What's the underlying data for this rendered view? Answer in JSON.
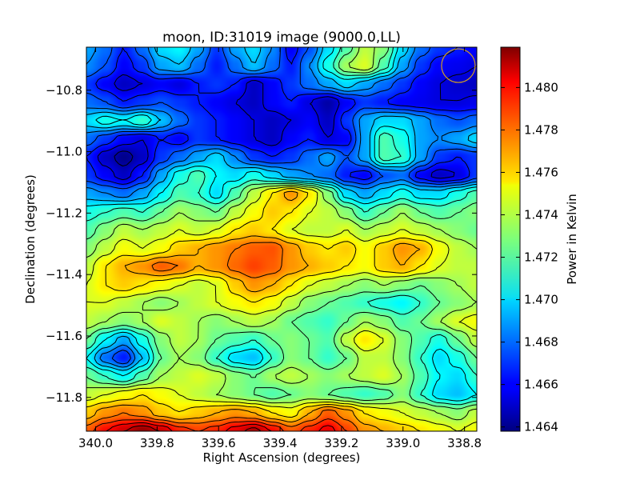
{
  "chart_data": {
    "type": "heatmap",
    "title": "moon, ID:31019 image (9000.0,LL)",
    "xlabel": "Right Ascension (degrees)",
    "ylabel": "Declination (degrees)",
    "colorbar_label": "Power in Kelvin",
    "x_ticks": [
      "340.0",
      "339.8",
      "339.6",
      "339.4",
      "339.2",
      "339.0",
      "338.8"
    ],
    "y_ticks": [
      "−10.8",
      "−11.0",
      "−11.2",
      "−11.4",
      "−11.6",
      "−11.8"
    ],
    "colorbar_ticks": [
      "1.464",
      "1.466",
      "1.468",
      "1.470",
      "1.472",
      "1.474",
      "1.476",
      "1.478",
      "1.480"
    ],
    "xlim": [
      340.03,
      338.76
    ],
    "ylim": [
      -11.91,
      -10.66
    ],
    "clim": [
      1.4638,
      1.4819
    ],
    "colormap": "jet",
    "contours": true,
    "beam_marker": {
      "ra": 338.82,
      "dec": -10.72,
      "color": "#d4a020"
    },
    "grid": [
      [
        1.469,
        1.468,
        1.4665,
        1.468,
        1.47,
        1.4705,
        1.469,
        1.467,
        1.469,
        1.47,
        1.4685,
        1.466,
        1.4675,
        1.47,
        1.472,
        1.474,
        1.473,
        1.47,
        1.468,
        1.467,
        1.4665,
        1.466
      ],
      [
        1.4685,
        1.4675,
        1.466,
        1.467,
        1.469,
        1.4695,
        1.468,
        1.4665,
        1.468,
        1.4695,
        1.468,
        1.4665,
        1.4685,
        1.471,
        1.4735,
        1.4745,
        1.472,
        1.469,
        1.467,
        1.466,
        1.4658,
        1.4655
      ],
      [
        1.467,
        1.466,
        1.465,
        1.4655,
        1.466,
        1.4655,
        1.4665,
        1.467,
        1.4665,
        1.465,
        1.466,
        1.467,
        1.468,
        1.469,
        1.47,
        1.469,
        1.468,
        1.467,
        1.466,
        1.4655,
        1.4652,
        1.465
      ],
      [
        1.468,
        1.4675,
        1.4665,
        1.467,
        1.4675,
        1.467,
        1.4665,
        1.466,
        1.4655,
        1.465,
        1.466,
        1.4665,
        1.4655,
        1.4645,
        1.466,
        1.467,
        1.4665,
        1.466,
        1.4658,
        1.4655,
        1.4655,
        1.4657
      ],
      [
        1.47,
        1.471,
        1.4705,
        1.4715,
        1.4695,
        1.468,
        1.467,
        1.4665,
        1.466,
        1.4655,
        1.465,
        1.4655,
        1.466,
        1.465,
        1.467,
        1.469,
        1.47,
        1.47,
        1.469,
        1.468,
        1.4675,
        1.468
      ],
      [
        1.468,
        1.467,
        1.466,
        1.4655,
        1.4665,
        1.466,
        1.467,
        1.4665,
        1.466,
        1.4655,
        1.465,
        1.466,
        1.4665,
        1.4655,
        1.466,
        1.469,
        1.472,
        1.471,
        1.469,
        1.4685,
        1.469,
        1.47
      ],
      [
        1.4665,
        1.465,
        1.464,
        1.465,
        1.467,
        1.468,
        1.469,
        1.47,
        1.4685,
        1.467,
        1.4665,
        1.467,
        1.468,
        1.469,
        1.4675,
        1.469,
        1.472,
        1.4715,
        1.469,
        1.467,
        1.4665,
        1.467
      ],
      [
        1.467,
        1.466,
        1.465,
        1.4665,
        1.469,
        1.471,
        1.472,
        1.4705,
        1.47,
        1.471,
        1.47,
        1.469,
        1.4685,
        1.468,
        1.4665,
        1.466,
        1.4675,
        1.468,
        1.466,
        1.465,
        1.4655,
        1.467
      ],
      [
        1.469,
        1.4685,
        1.468,
        1.469,
        1.4705,
        1.472,
        1.4715,
        1.47,
        1.472,
        1.474,
        1.4755,
        1.477,
        1.4755,
        1.473,
        1.47,
        1.469,
        1.47,
        1.471,
        1.47,
        1.47,
        1.471,
        1.472
      ],
      [
        1.471,
        1.4715,
        1.472,
        1.4715,
        1.4725,
        1.4735,
        1.473,
        1.4725,
        1.474,
        1.475,
        1.476,
        1.4755,
        1.4745,
        1.474,
        1.473,
        1.4715,
        1.4725,
        1.4735,
        1.4725,
        1.472,
        1.4725,
        1.473
      ],
      [
        1.472,
        1.473,
        1.474,
        1.4735,
        1.474,
        1.4745,
        1.474,
        1.4745,
        1.4755,
        1.476,
        1.4755,
        1.4745,
        1.474,
        1.474,
        1.4745,
        1.4735,
        1.474,
        1.4745,
        1.474,
        1.4735,
        1.473,
        1.4725
      ],
      [
        1.473,
        1.474,
        1.475,
        1.4745,
        1.475,
        1.476,
        1.4765,
        1.477,
        1.4775,
        1.478,
        1.4782,
        1.477,
        1.476,
        1.4755,
        1.476,
        1.475,
        1.476,
        1.477,
        1.4765,
        1.475,
        1.474,
        1.4735
      ],
      [
        1.474,
        1.4755,
        1.4765,
        1.477,
        1.478,
        1.4775,
        1.4765,
        1.477,
        1.4778,
        1.4785,
        1.478,
        1.477,
        1.4765,
        1.476,
        1.4755,
        1.475,
        1.476,
        1.4765,
        1.4755,
        1.4745,
        1.474,
        1.474
      ],
      [
        1.4745,
        1.4755,
        1.476,
        1.4755,
        1.475,
        1.4745,
        1.474,
        1.4745,
        1.476,
        1.477,
        1.4765,
        1.4755,
        1.4745,
        1.474,
        1.4735,
        1.473,
        1.4735,
        1.473,
        1.4725,
        1.473,
        1.4735,
        1.474
      ],
      [
        1.4745,
        1.4745,
        1.474,
        1.4735,
        1.473,
        1.4735,
        1.474,
        1.4745,
        1.475,
        1.4755,
        1.475,
        1.474,
        1.473,
        1.4725,
        1.472,
        1.4715,
        1.471,
        1.4705,
        1.4715,
        1.4725,
        1.473,
        1.4735
      ],
      [
        1.474,
        1.4735,
        1.473,
        1.4735,
        1.4745,
        1.474,
        1.4735,
        1.473,
        1.4735,
        1.474,
        1.4735,
        1.4725,
        1.472,
        1.4715,
        1.4725,
        1.4735,
        1.473,
        1.472,
        1.4725,
        1.4735,
        1.4745,
        1.475
      ],
      [
        1.4725,
        1.4705,
        1.469,
        1.471,
        1.473,
        1.474,
        1.4735,
        1.4725,
        1.472,
        1.4715,
        1.4725,
        1.473,
        1.4725,
        1.472,
        1.474,
        1.4755,
        1.4745,
        1.473,
        1.472,
        1.471,
        1.4725,
        1.474
      ],
      [
        1.4705,
        1.468,
        1.4665,
        1.4695,
        1.4725,
        1.4735,
        1.473,
        1.4715,
        1.47,
        1.4695,
        1.4715,
        1.473,
        1.4725,
        1.4715,
        1.4725,
        1.474,
        1.474,
        1.473,
        1.4715,
        1.47,
        1.471,
        1.4725
      ],
      [
        1.4725,
        1.4715,
        1.4705,
        1.472,
        1.4735,
        1.474,
        1.4745,
        1.474,
        1.473,
        1.4725,
        1.4735,
        1.474,
        1.4735,
        1.473,
        1.4735,
        1.474,
        1.4745,
        1.4735,
        1.472,
        1.4705,
        1.47,
        1.4715
      ],
      [
        1.474,
        1.4745,
        1.475,
        1.4755,
        1.475,
        1.4745,
        1.474,
        1.4735,
        1.473,
        1.4725,
        1.472,
        1.4725,
        1.473,
        1.4725,
        1.472,
        1.4715,
        1.472,
        1.473,
        1.4715,
        1.47,
        1.4695,
        1.4705
      ],
      [
        1.476,
        1.477,
        1.4775,
        1.477,
        1.476,
        1.4755,
        1.476,
        1.4765,
        1.477,
        1.4765,
        1.4755,
        1.475,
        1.4765,
        1.478,
        1.477,
        1.4755,
        1.475,
        1.4745,
        1.474,
        1.4735,
        1.473,
        1.474
      ],
      [
        1.478,
        1.4795,
        1.4805,
        1.4815,
        1.4805,
        1.479,
        1.4785,
        1.479,
        1.48,
        1.481,
        1.4795,
        1.478,
        1.479,
        1.48,
        1.4785,
        1.477,
        1.4765,
        1.476,
        1.4755,
        1.475,
        1.4745,
        1.475
      ]
    ]
  }
}
